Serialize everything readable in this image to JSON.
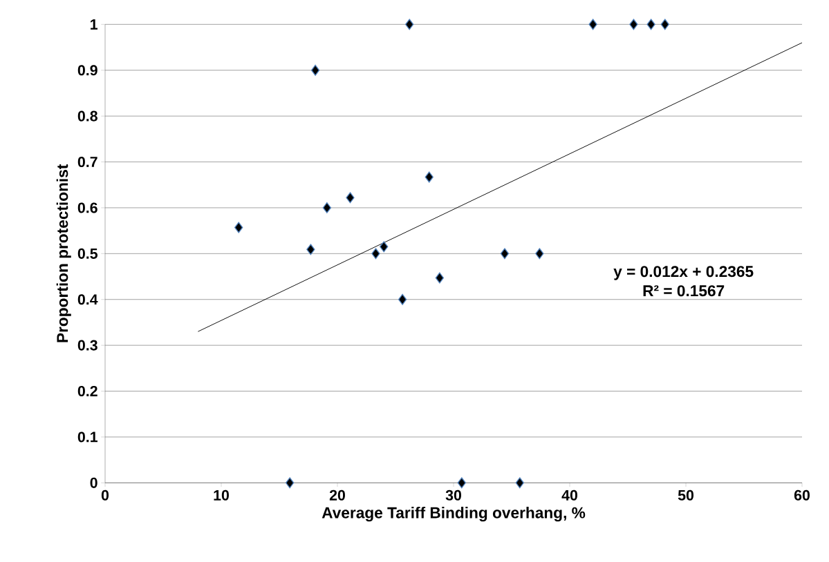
{
  "chart_data": {
    "type": "scatter",
    "xlabel": "Average Tariff Binding overhang, %",
    "ylabel": "Proportion protectionist",
    "xlim": [
      0,
      60
    ],
    "xticks": [
      0,
      10,
      20,
      30,
      40,
      50,
      60
    ],
    "ylim": [
      0,
      1
    ],
    "yticks": [
      0,
      0.1,
      0.2,
      0.3,
      0.4,
      0.5,
      0.6,
      0.7,
      0.8,
      0.9,
      1
    ],
    "grid": "y",
    "marker": "diamond",
    "series": [
      {
        "color": "#000000",
        "x": [
          11.5,
          15.9,
          17.7,
          18.1,
          19.1,
          21.1,
          23.3,
          24.0,
          25.6,
          26.2,
          27.9,
          28.8,
          30.7,
          34.4,
          35.7,
          37.4,
          42.0,
          45.5,
          47.0,
          48.2
        ],
        "values": [
          0.557,
          0,
          0.509,
          0.9,
          0.6,
          0.622,
          0.5,
          0.515,
          0.4,
          1,
          0.667,
          0.447,
          0,
          0.5,
          0,
          0.5,
          1,
          1,
          1,
          1
        ]
      },
      {
        "type": "line",
        "color": "#000000",
        "marker": "none",
        "x": [
          8,
          60
        ],
        "values": [
          0.33,
          0.96
        ]
      }
    ],
    "annotations": [
      "y = 0.012x + 0.2365",
      "R² = 0.1567"
    ]
  }
}
